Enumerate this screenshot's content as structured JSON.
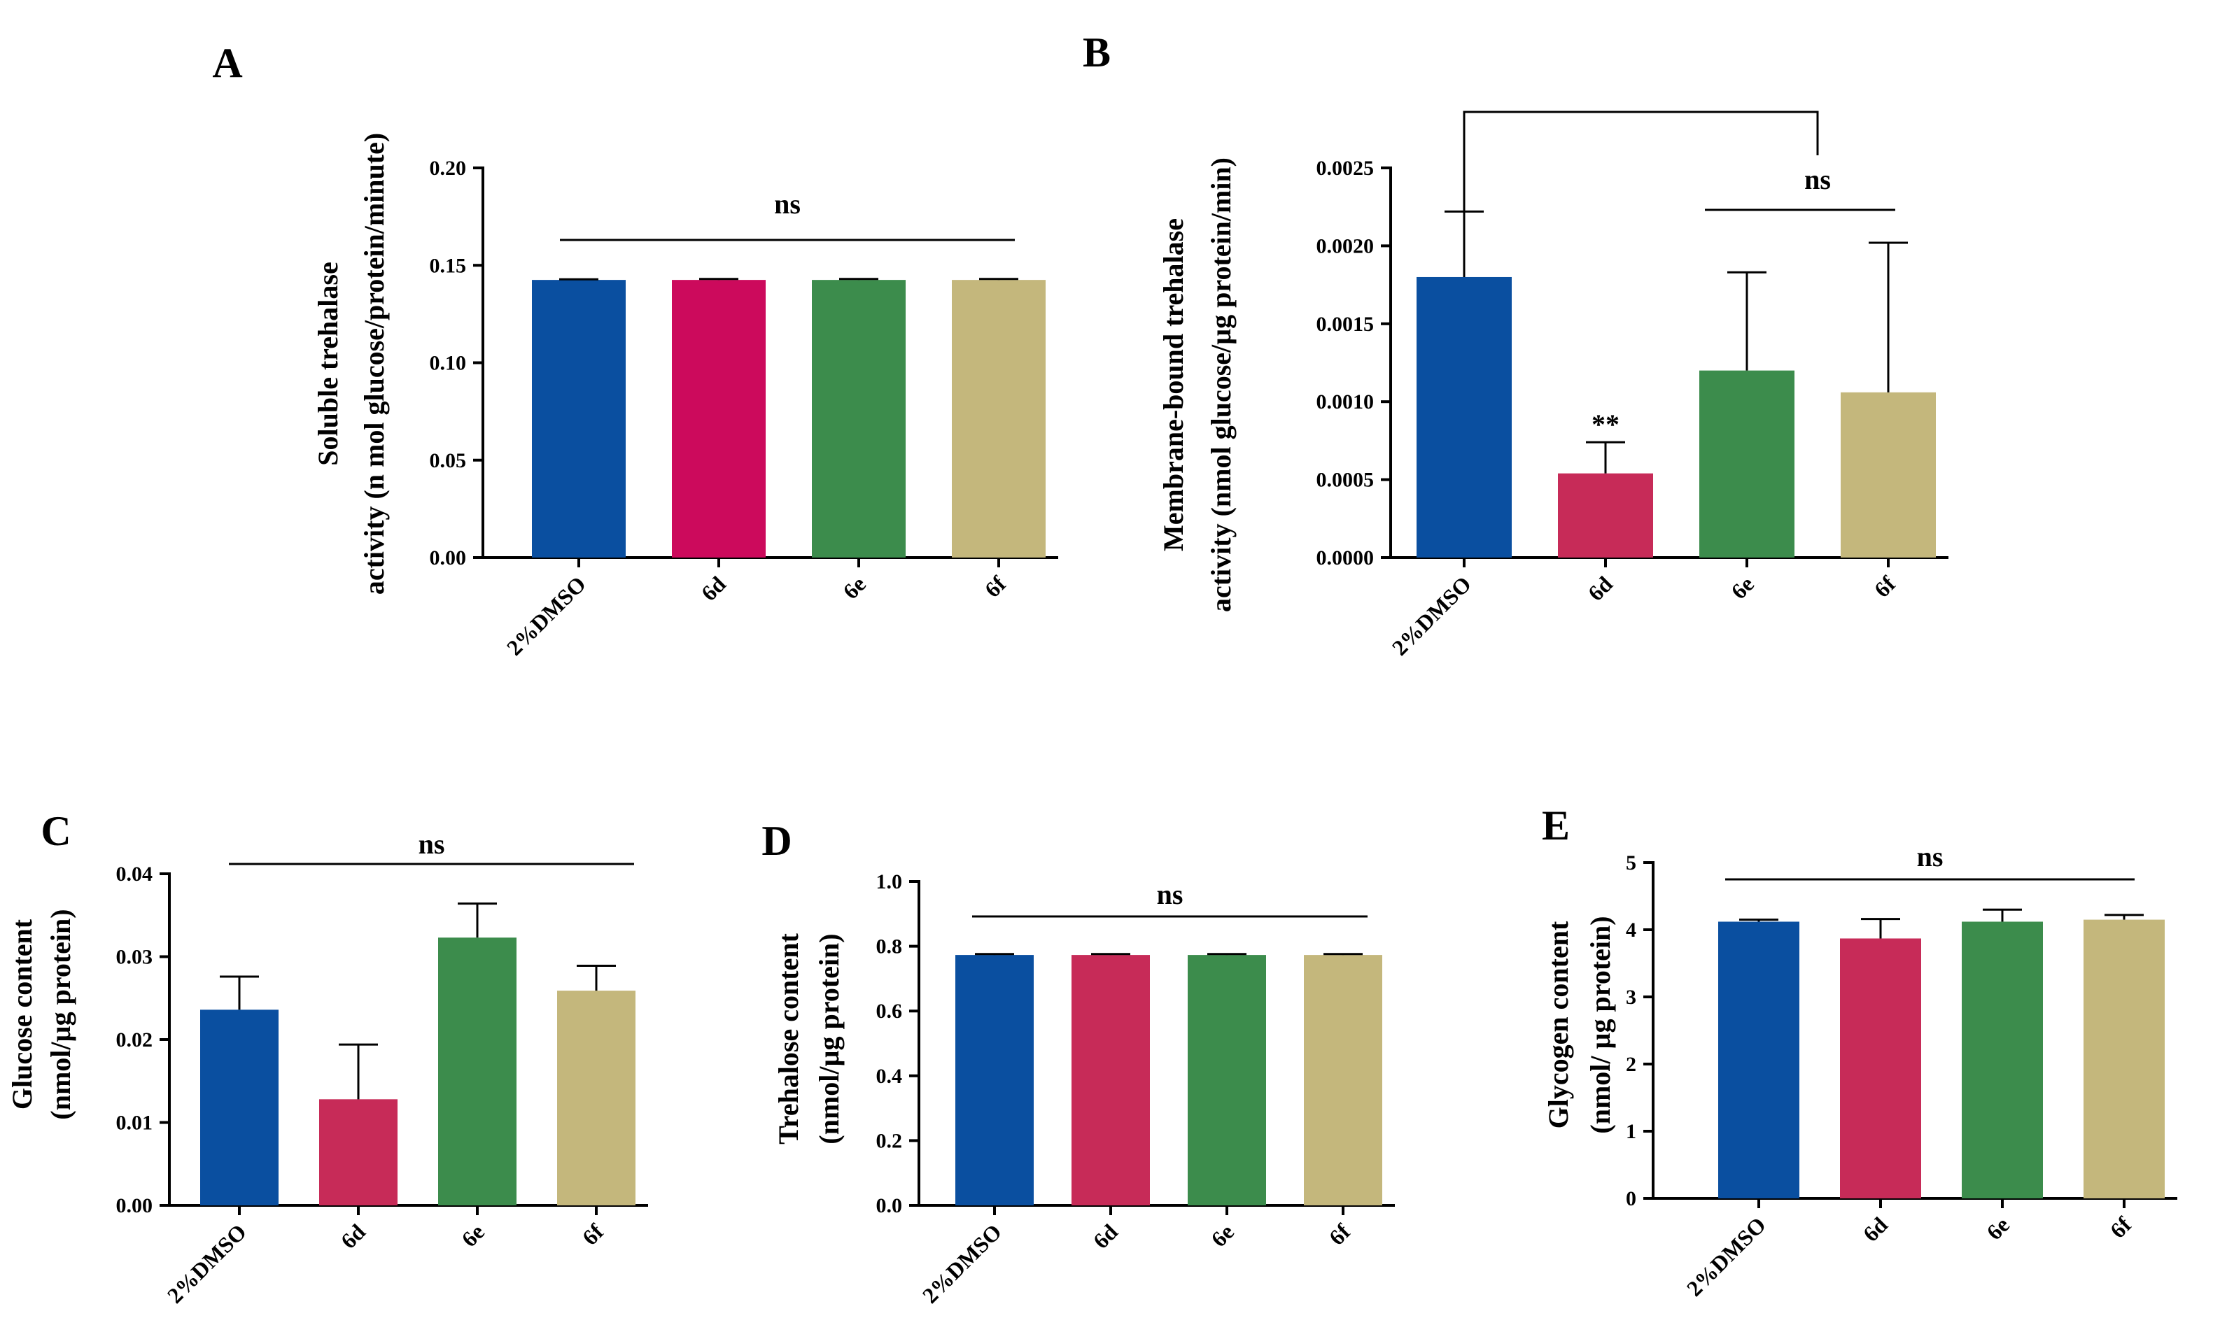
{
  "colors": {
    "2%DMSO": "#0a4fa0",
    "6d_A": "#cc0a5c",
    "6d": "#c72b58",
    "6e": "#3c8c4c",
    "6f": "#c4b77c",
    "axis": "#000000"
  },
  "chart_data": [
    {
      "panel": "A",
      "type": "bar",
      "categories": [
        "2%DMSO",
        "6d",
        "6e",
        "6f"
      ],
      "values": [
        0.1425,
        0.1425,
        0.1425,
        0.1425
      ],
      "errors": [
        0.0003,
        0.0005,
        0.0005,
        0.0005
      ],
      "ylabel_lines": [
        "Soluble trehalase",
        "activity (n mol glucose/protein/minute)"
      ],
      "ylim": [
        0,
        0.2
      ],
      "yticks": [
        0.0,
        0.05,
        0.1,
        0.15,
        0.2
      ],
      "ytick_labels": [
        "0.00",
        "0.05",
        "0.10",
        "0.15",
        "0.20"
      ],
      "annotations": [
        {
          "text": "ns",
          "type": "line",
          "from": "2%DMSO",
          "to": "6f"
        }
      ]
    },
    {
      "panel": "B",
      "type": "bar",
      "categories": [
        "2%DMSO",
        "6d",
        "6e",
        "6f"
      ],
      "values": [
        0.0018,
        0.00054,
        0.0012,
        0.00106
      ],
      "errors": [
        0.00042,
        0.0002,
        0.00063,
        0.00096
      ],
      "ylabel_lines": [
        "Membrane-bound trehalase",
        "activity (nmol glucose/µg protein/min)"
      ],
      "ylim": [
        0,
        0.0025
      ],
      "yticks": [
        0.0,
        0.0005,
        0.001,
        0.0015,
        0.002,
        0.0025
      ],
      "ytick_labels": [
        "0.0000",
        "0.0005",
        "0.0010",
        "0.0015",
        "0.0020",
        "0.0025"
      ],
      "annotations": [
        {
          "text": "",
          "type": "bracket",
          "from": "2%DMSO",
          "to": "6e_6f"
        },
        {
          "text": "ns",
          "type": "line",
          "from": "6e",
          "to": "6f"
        },
        {
          "text": "**",
          "type": "star",
          "over": "6d"
        }
      ]
    },
    {
      "panel": "C",
      "type": "bar",
      "categories": [
        "2%DMSO",
        "6d",
        "6e",
        "6f"
      ],
      "values": [
        0.0236,
        0.0128,
        0.0323,
        0.0259
      ],
      "errors": [
        0.004,
        0.0066,
        0.0041,
        0.003
      ],
      "ylabel_lines": [
        "Glucose content",
        "(nmol/µg protein)"
      ],
      "ylim": [
        0,
        0.04
      ],
      "yticks": [
        0.0,
        0.01,
        0.02,
        0.03,
        0.04
      ],
      "ytick_labels": [
        "0.00",
        "0.01",
        "0.02",
        "0.03",
        "0.04"
      ],
      "annotations": [
        {
          "text": "ns",
          "type": "line",
          "from": "2%DMSO",
          "to": "6f"
        }
      ]
    },
    {
      "panel": "D",
      "type": "bar",
      "categories": [
        "2%DMSO",
        "6d",
        "6e",
        "6f"
      ],
      "values": [
        0.773,
        0.773,
        0.773,
        0.773
      ],
      "errors": [
        0.003,
        0.003,
        0.003,
        0.003
      ],
      "ylabel_lines": [
        "Trehalose content",
        "(nmol/µg protein)"
      ],
      "ylim": [
        0,
        1.0
      ],
      "yticks": [
        0.0,
        0.2,
        0.4,
        0.6,
        0.8,
        1.0
      ],
      "ytick_labels": [
        "0.0",
        "0.2",
        "0.4",
        "0.6",
        "0.8",
        "1.0"
      ],
      "annotations": [
        {
          "text": "ns",
          "type": "line",
          "from": "2%DMSO",
          "to": "6f"
        }
      ]
    },
    {
      "panel": "E",
      "type": "bar",
      "categories": [
        "2%DMSO",
        "6d",
        "6e",
        "6f"
      ],
      "values": [
        4.12,
        3.87,
        4.12,
        4.15
      ],
      "errors": [
        0.03,
        0.29,
        0.18,
        0.07
      ],
      "ylabel_lines": [
        "Glycogen content",
        "(nmol/ µg protein)"
      ],
      "ylim": [
        0,
        5
      ],
      "yticks": [
        0,
        1,
        2,
        3,
        4,
        5
      ],
      "ytick_labels": [
        "0",
        "1",
        "2",
        "3",
        "4",
        "5"
      ],
      "annotations": [
        {
          "text": "ns",
          "type": "line",
          "from": "2%DMSO",
          "to": "6f"
        }
      ]
    }
  ]
}
